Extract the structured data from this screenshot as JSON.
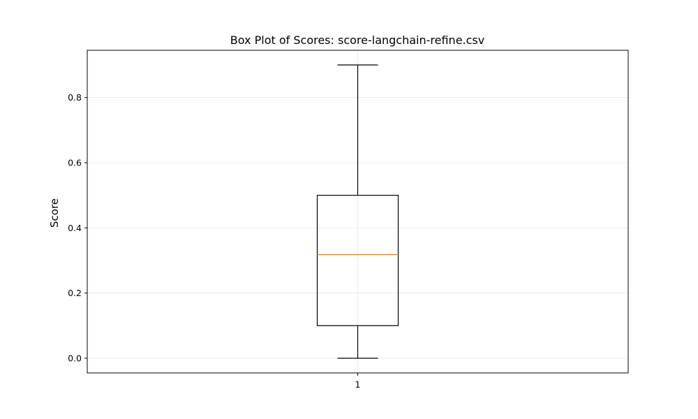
{
  "chart_data": {
    "type": "box",
    "title": "Box Plot of Scores: score-langchain-refine.csv",
    "xlabel": "",
    "ylabel": "Score",
    "categories": [
      "1"
    ],
    "boxes": [
      {
        "category": "1",
        "whisker_low": 0.0,
        "q1": 0.1,
        "median": 0.318,
        "q3": 0.5,
        "whisker_high": 0.9
      }
    ],
    "ylim": [
      -0.045,
      0.945
    ],
    "yticks": [
      0.0,
      0.2,
      0.4,
      0.6,
      0.8
    ],
    "ytick_labels": [
      "0.0",
      "0.2",
      "0.4",
      "0.6",
      "0.8"
    ],
    "grid": true,
    "colors": {
      "box": "#000000",
      "median": "#ff7f0e",
      "grid": "#e6e6e6"
    }
  }
}
